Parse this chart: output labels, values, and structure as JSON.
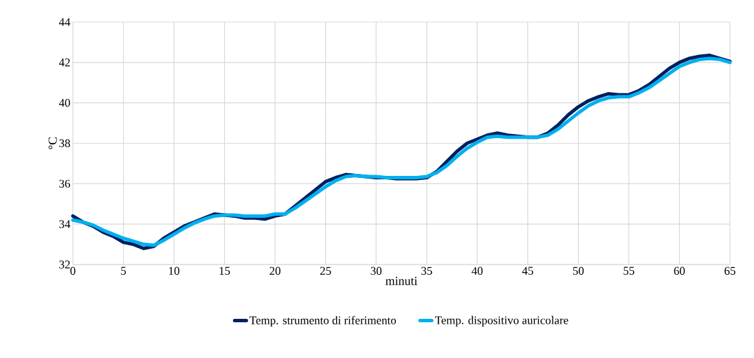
{
  "chart_data": {
    "type": "line",
    "xlabel": "minuti",
    "ylabel": "°C",
    "x": [
      0,
      1,
      2,
      3,
      4,
      5,
      6,
      7,
      8,
      9,
      10,
      11,
      12,
      13,
      14,
      15,
      16,
      17,
      18,
      19,
      20,
      21,
      22,
      23,
      24,
      25,
      26,
      27,
      28,
      29,
      30,
      31,
      32,
      33,
      34,
      35,
      36,
      37,
      38,
      39,
      40,
      41,
      42,
      43,
      44,
      45,
      46,
      47,
      48,
      49,
      50,
      51,
      52,
      53,
      54,
      55,
      56,
      57,
      58,
      59,
      60,
      61,
      62,
      63,
      64,
      65
    ],
    "series": [
      {
        "name": "Temp. strumento di riferimento",
        "color": "#002060",
        "values": [
          34.4,
          34.1,
          33.9,
          33.6,
          33.4,
          33.1,
          33.0,
          32.8,
          32.9,
          33.3,
          33.6,
          33.9,
          34.1,
          34.3,
          34.5,
          34.45,
          34.4,
          34.3,
          34.3,
          34.25,
          34.4,
          34.5,
          34.9,
          35.3,
          35.7,
          36.1,
          36.3,
          36.45,
          36.4,
          36.35,
          36.3,
          36.3,
          36.25,
          36.25,
          36.25,
          36.3,
          36.6,
          37.1,
          37.6,
          38.0,
          38.2,
          38.4,
          38.5,
          38.4,
          38.35,
          38.3,
          38.3,
          38.5,
          38.9,
          39.4,
          39.8,
          40.1,
          40.3,
          40.45,
          40.4,
          40.4,
          40.6,
          40.9,
          41.3,
          41.7,
          42.0,
          42.2,
          42.3,
          42.35,
          42.2,
          42.05
        ]
      },
      {
        "name": "Temp. dispositivo auricolare",
        "color": "#00b0f0",
        "values": [
          34.2,
          34.1,
          33.95,
          33.7,
          33.5,
          33.3,
          33.15,
          33.0,
          32.95,
          33.2,
          33.5,
          33.8,
          34.05,
          34.25,
          34.4,
          34.45,
          34.45,
          34.4,
          34.4,
          34.4,
          34.5,
          34.5,
          34.8,
          35.15,
          35.5,
          35.85,
          36.15,
          36.35,
          36.4,
          36.35,
          36.35,
          36.3,
          36.3,
          36.3,
          36.3,
          36.35,
          36.55,
          36.9,
          37.35,
          37.75,
          38.05,
          38.3,
          38.35,
          38.3,
          38.3,
          38.3,
          38.3,
          38.4,
          38.7,
          39.1,
          39.5,
          39.85,
          40.1,
          40.25,
          40.3,
          40.3,
          40.5,
          40.75,
          41.1,
          41.45,
          41.8,
          42.0,
          42.15,
          42.2,
          42.15,
          42.0
        ]
      }
    ],
    "xlim": [
      0,
      65
    ],
    "xticks": [
      0,
      5,
      10,
      15,
      20,
      25,
      30,
      35,
      40,
      45,
      50,
      55,
      60,
      65
    ],
    "ylim": [
      32,
      44
    ],
    "yticks": [
      32,
      34,
      36,
      38,
      40,
      42,
      44
    ],
    "grid": true,
    "legend": "bottom",
    "marker": "none",
    "line_style": "solid"
  }
}
